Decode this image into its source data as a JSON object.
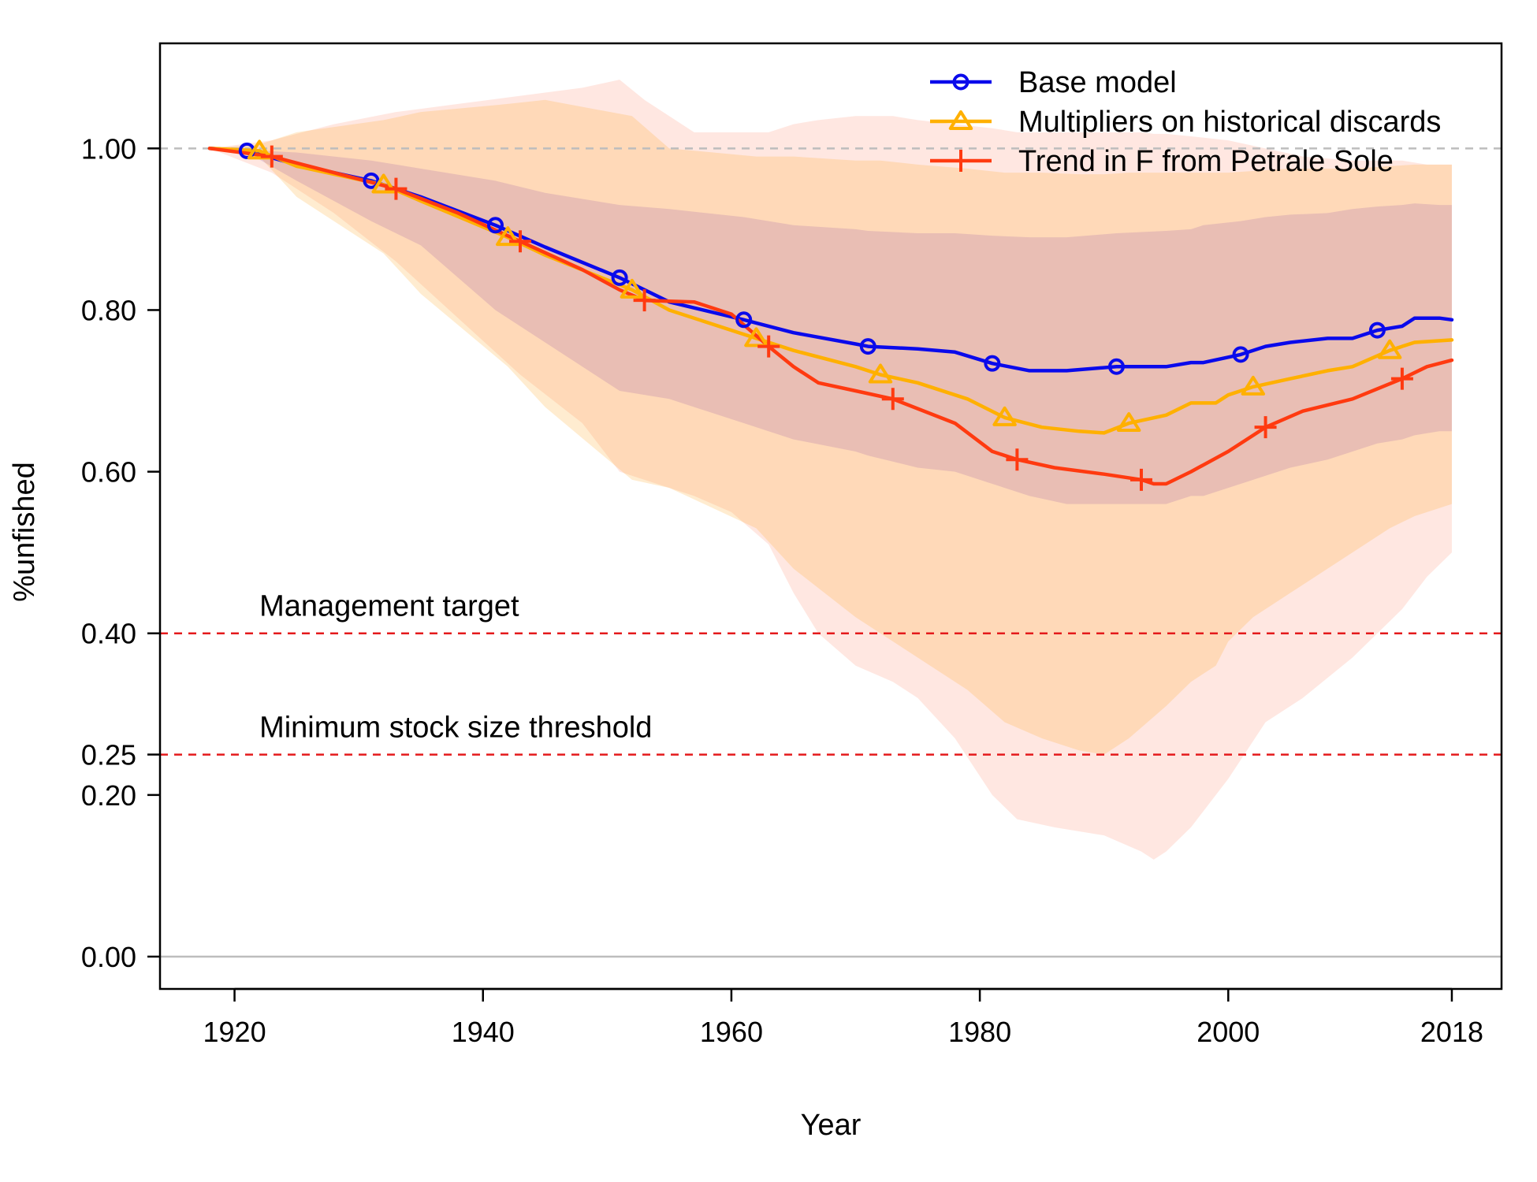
{
  "chart_data": {
    "type": "line",
    "title": "",
    "xlabel": "Year",
    "ylabel": "%unfished",
    "xlim": [
      1914,
      2022
    ],
    "ylim": [
      -0.04,
      1.13
    ],
    "x_ticks": [
      1920,
      1940,
      1960,
      1980,
      2000,
      2018
    ],
    "x_tick_labels": [
      "1920",
      "1940",
      "1960",
      "1980",
      "2000",
      "2018"
    ],
    "y_ticks": [
      0.0,
      0.2,
      0.25,
      0.4,
      0.6,
      0.8,
      1.0
    ],
    "y_tick_labels": [
      "0.00",
      "0.20",
      "0.25",
      "0.40",
      "0.60",
      "0.80",
      "1.00"
    ],
    "grid": false,
    "legend_position": "top-right",
    "reference_lines": [
      {
        "y": 1.0,
        "label": "",
        "style": "dashed",
        "color": "#bdbdbd"
      },
      {
        "y": 0.4,
        "label": "Management target",
        "style": "dashed",
        "color": "#e41a1c"
      },
      {
        "y": 0.25,
        "label": "Minimum stock size threshold",
        "style": "dashed",
        "color": "#e41a1c"
      },
      {
        "y": 0.0,
        "label": "",
        "style": "solid",
        "color": "#bdbdbd"
      }
    ],
    "series": [
      {
        "name": "Base model",
        "color": "#0a0aeb",
        "marker": "circle",
        "x": [
          1918,
          1921,
          1925,
          1931,
          1935,
          1941,
          1945,
          1951,
          1955,
          1961,
          1965,
          1970,
          1971,
          1975,
          1978,
          1981,
          1984,
          1987,
          1991,
          1995,
          1997,
          1998,
          2001,
          2003,
          2005,
          2008,
          2010,
          2012,
          2014,
          2015,
          2017,
          2018
        ],
        "y": [
          1.0,
          0.997,
          0.98,
          0.96,
          0.94,
          0.905,
          0.878,
          0.84,
          0.81,
          0.788,
          0.772,
          0.758,
          0.755,
          0.752,
          0.748,
          0.734,
          0.725,
          0.725,
          0.73,
          0.73,
          0.735,
          0.735,
          0.745,
          0.755,
          0.76,
          0.765,
          0.765,
          0.775,
          0.78,
          0.79,
          0.79,
          0.788
        ],
        "marker_x": [
          1921,
          1931,
          1941,
          1951,
          1961,
          1971,
          1981,
          1991,
          2001,
          2012
        ],
        "lower": [
          1.0,
          0.995,
          0.96,
          0.91,
          0.88,
          0.8,
          0.76,
          0.7,
          0.69,
          0.66,
          0.64,
          0.625,
          0.62,
          0.605,
          0.6,
          0.585,
          0.57,
          0.56,
          0.56,
          0.56,
          0.57,
          0.57,
          0.585,
          0.595,
          0.605,
          0.615,
          0.625,
          0.635,
          0.64,
          0.645,
          0.65,
          0.65
        ],
        "upper": [
          1.0,
          0.998,
          0.995,
          0.985,
          0.975,
          0.96,
          0.945,
          0.93,
          0.925,
          0.915,
          0.905,
          0.9,
          0.898,
          0.895,
          0.895,
          0.892,
          0.89,
          0.89,
          0.895,
          0.898,
          0.9,
          0.905,
          0.91,
          0.915,
          0.918,
          0.92,
          0.925,
          0.928,
          0.93,
          0.932,
          0.93,
          0.93
        ]
      },
      {
        "name": "Multipliers on historical discards",
        "color": "#ffb000",
        "marker": "triangle",
        "x": [
          1918,
          1922,
          1925,
          1932,
          1935,
          1942,
          1945,
          1952,
          1955,
          1962,
          1965,
          1970,
          1972,
          1975,
          1979,
          1982,
          1985,
          1988,
          1990,
          1992,
          1995,
          1997,
          1999,
          2000,
          2002,
          2005,
          2008,
          2010,
          2013,
          2015,
          2018
        ],
        "y": [
          1.0,
          0.997,
          0.978,
          0.955,
          0.935,
          0.89,
          0.868,
          0.825,
          0.8,
          0.765,
          0.75,
          0.73,
          0.72,
          0.71,
          0.69,
          0.667,
          0.655,
          0.65,
          0.648,
          0.66,
          0.67,
          0.685,
          0.685,
          0.695,
          0.705,
          0.715,
          0.725,
          0.73,
          0.75,
          0.76,
          0.763
        ],
        "marker_x": [
          1922,
          1932,
          1942,
          1952,
          1962,
          1972,
          1982,
          1992,
          2002,
          2013
        ],
        "lower": [
          1.0,
          0.99,
          0.94,
          0.87,
          0.82,
          0.73,
          0.68,
          0.59,
          0.58,
          0.53,
          0.48,
          0.42,
          0.4,
          0.37,
          0.33,
          0.29,
          0.27,
          0.255,
          0.25,
          0.27,
          0.31,
          0.34,
          0.36,
          0.39,
          0.42,
          0.45,
          0.48,
          0.5,
          0.53,
          0.545,
          0.56
        ],
        "upper": [
          1.0,
          1.005,
          1.02,
          1.035,
          1.045,
          1.055,
          1.06,
          1.04,
          1.0,
          0.99,
          0.99,
          0.985,
          0.985,
          0.98,
          0.975,
          0.97,
          0.97,
          0.968,
          0.968,
          0.97,
          0.97,
          0.97,
          0.97,
          0.97,
          0.972,
          0.975,
          0.975,
          0.975,
          0.978,
          0.98,
          0.98
        ]
      },
      {
        "name": "Trend in F from Petrale Sole",
        "color": "#ff3a10",
        "marker": "plus",
        "x": [
          1918,
          1923,
          1928,
          1933,
          1938,
          1943,
          1948,
          1951,
          1953,
          1957,
          1960,
          1963,
          1965,
          1967,
          1970,
          1973,
          1975,
          1978,
          1981,
          1983,
          1986,
          1990,
          1993,
          1994,
          1995,
          1997,
          2000,
          2003,
          2006,
          2010,
          2014,
          2016,
          2018
        ],
        "y": [
          1.0,
          0.99,
          0.97,
          0.95,
          0.92,
          0.885,
          0.85,
          0.825,
          0.812,
          0.81,
          0.795,
          0.755,
          0.73,
          0.71,
          0.7,
          0.69,
          0.678,
          0.66,
          0.625,
          0.615,
          0.605,
          0.597,
          0.59,
          0.585,
          0.585,
          0.6,
          0.625,
          0.655,
          0.675,
          0.69,
          0.715,
          0.73,
          0.738
        ],
        "marker_x": [
          1923,
          1933,
          1943,
          1953,
          1963,
          1973,
          1983,
          1993,
          2003,
          2014
        ],
        "lower": [
          1.0,
          0.97,
          0.92,
          0.86,
          0.79,
          0.72,
          0.66,
          0.6,
          0.59,
          0.57,
          0.55,
          0.51,
          0.45,
          0.4,
          0.36,
          0.34,
          0.32,
          0.27,
          0.2,
          0.17,
          0.16,
          0.15,
          0.13,
          0.12,
          0.13,
          0.16,
          0.22,
          0.29,
          0.32,
          0.37,
          0.43,
          0.47,
          0.5
        ],
        "upper": [
          1.0,
          1.01,
          1.03,
          1.045,
          1.055,
          1.065,
          1.075,
          1.085,
          1.06,
          1.02,
          1.02,
          1.02,
          1.03,
          1.035,
          1.04,
          1.04,
          1.035,
          1.03,
          1.025,
          1.02,
          1.02,
          1.02,
          1.02,
          1.018,
          1.018,
          1.015,
          1.01,
          1.0,
          0.99,
          0.985,
          0.985,
          0.98,
          0.98
        ]
      }
    ]
  }
}
